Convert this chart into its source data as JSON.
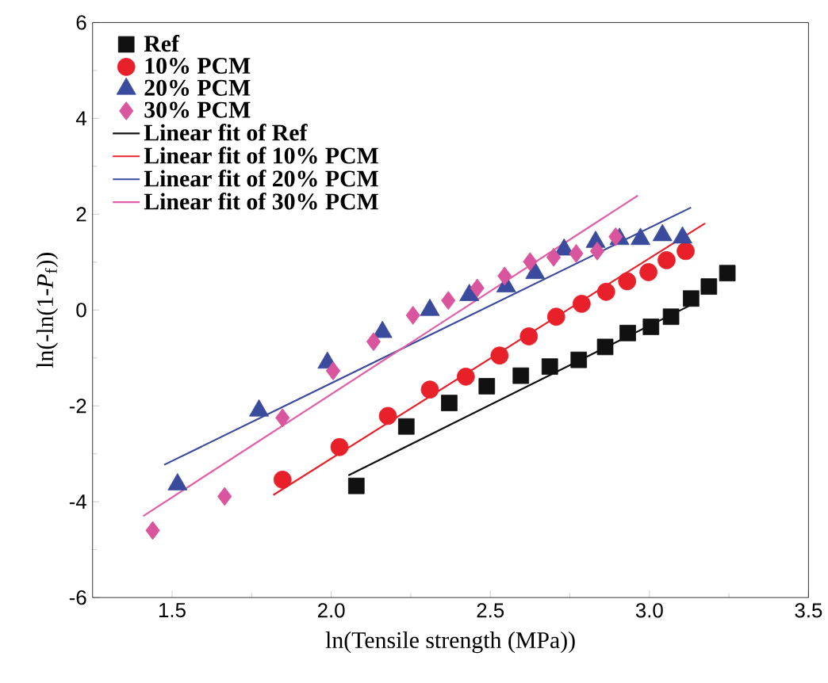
{
  "chart_data": {
    "type": "scatter",
    "xlabel": "ln(Tensile strength (MPa))",
    "ylabel": "ln(-ln(1-*P*$_{f}$))",
    "xlim": [
      1.25,
      3.5
    ],
    "ylim": [
      -6,
      6
    ],
    "xticks": [
      1.5,
      {
        "value": 2,
        "label": "2.0"
      },
      2.5,
      {
        "value": 3,
        "label": "3.0"
      },
      3.5
    ],
    "yticks": [
      -6,
      -4,
      -2,
      0,
      2,
      4,
      6
    ],
    "legend": "top left",
    "grid": false,
    "series": [
      {
        "name": "Ref",
        "color": "#111111",
        "marker": "square",
        "x": [
          2.079,
          2.236,
          2.371,
          2.489,
          2.596,
          2.687,
          2.778,
          2.861,
          2.932,
          3.005,
          3.068,
          3.131,
          3.187,
          3.245
        ],
        "values": [
          -3.67,
          -2.43,
          -1.94,
          -1.59,
          -1.37,
          -1.18,
          -1.04,
          -0.77,
          -0.48,
          -0.35,
          -0.14,
          0.24,
          0.49,
          0.77
        ]
      },
      {
        "name": "10% PCM",
        "color": "#e8202a",
        "marker": "circle",
        "x": [
          1.847,
          2.026,
          2.178,
          2.31,
          2.423,
          2.529,
          2.621,
          2.707,
          2.787,
          2.864,
          2.93,
          2.997,
          3.054,
          3.114
        ],
        "values": [
          -3.54,
          -2.86,
          -2.21,
          -1.66,
          -1.39,
          -0.95,
          -0.55,
          -0.14,
          0.13,
          0.38,
          0.6,
          0.79,
          1.04,
          1.23
        ]
      },
      {
        "name": "20% PCM",
        "color": "#3a4a9c",
        "marker": "triangle",
        "x": [
          1.517,
          1.773,
          1.988,
          2.161,
          2.31,
          2.434,
          2.55,
          2.641,
          2.732,
          2.831,
          2.906,
          2.972,
          3.041,
          3.104
        ],
        "values": [
          -3.64,
          -2.1,
          -1.1,
          -0.46,
          0.0,
          0.31,
          0.49,
          0.77,
          1.26,
          1.42,
          1.48,
          1.48,
          1.56,
          1.51
        ]
      },
      {
        "name": "30% PCM",
        "color": "#d9559e",
        "marker": "diamond",
        "x": [
          1.439,
          1.665,
          1.847,
          2.006,
          2.133,
          2.257,
          2.368,
          2.459,
          2.545,
          2.625,
          2.699,
          2.77,
          2.836,
          2.894
        ],
        "values": [
          -4.6,
          -3.89,
          -2.25,
          -1.27,
          -0.66,
          -0.11,
          0.2,
          0.46,
          0.71,
          1.01,
          1.1,
          1.18,
          1.23,
          1.53
        ]
      },
      {
        "name": "Linear fit of Ref",
        "type": "line",
        "color": "#111111",
        "marker": "none",
        "line_style": "solid",
        "x": [
          2.054,
          3.147
        ],
        "values": [
          -3.45,
          0.16
        ]
      },
      {
        "name": "Linear fit of 10% PCM",
        "type": "line",
        "color": "#e8202a",
        "marker": "none",
        "line_style": "solid",
        "x": [
          1.818,
          3.175
        ],
        "values": [
          -3.86,
          1.81
        ]
      },
      {
        "name": "Linear fit of 20% PCM",
        "type": "line",
        "color": "#3c4a9e",
        "marker": "none",
        "line_style": "solid",
        "x": [
          1.475,
          3.131
        ],
        "values": [
          -3.23,
          2.14
        ]
      },
      {
        "name": "Linear fit of 30% PCM",
        "type": "line",
        "color": "#e060a8",
        "marker": "none",
        "line_style": "solid",
        "x": [
          1.409,
          2.964
        ],
        "values": [
          -4.3,
          2.39
        ]
      }
    ]
  }
}
